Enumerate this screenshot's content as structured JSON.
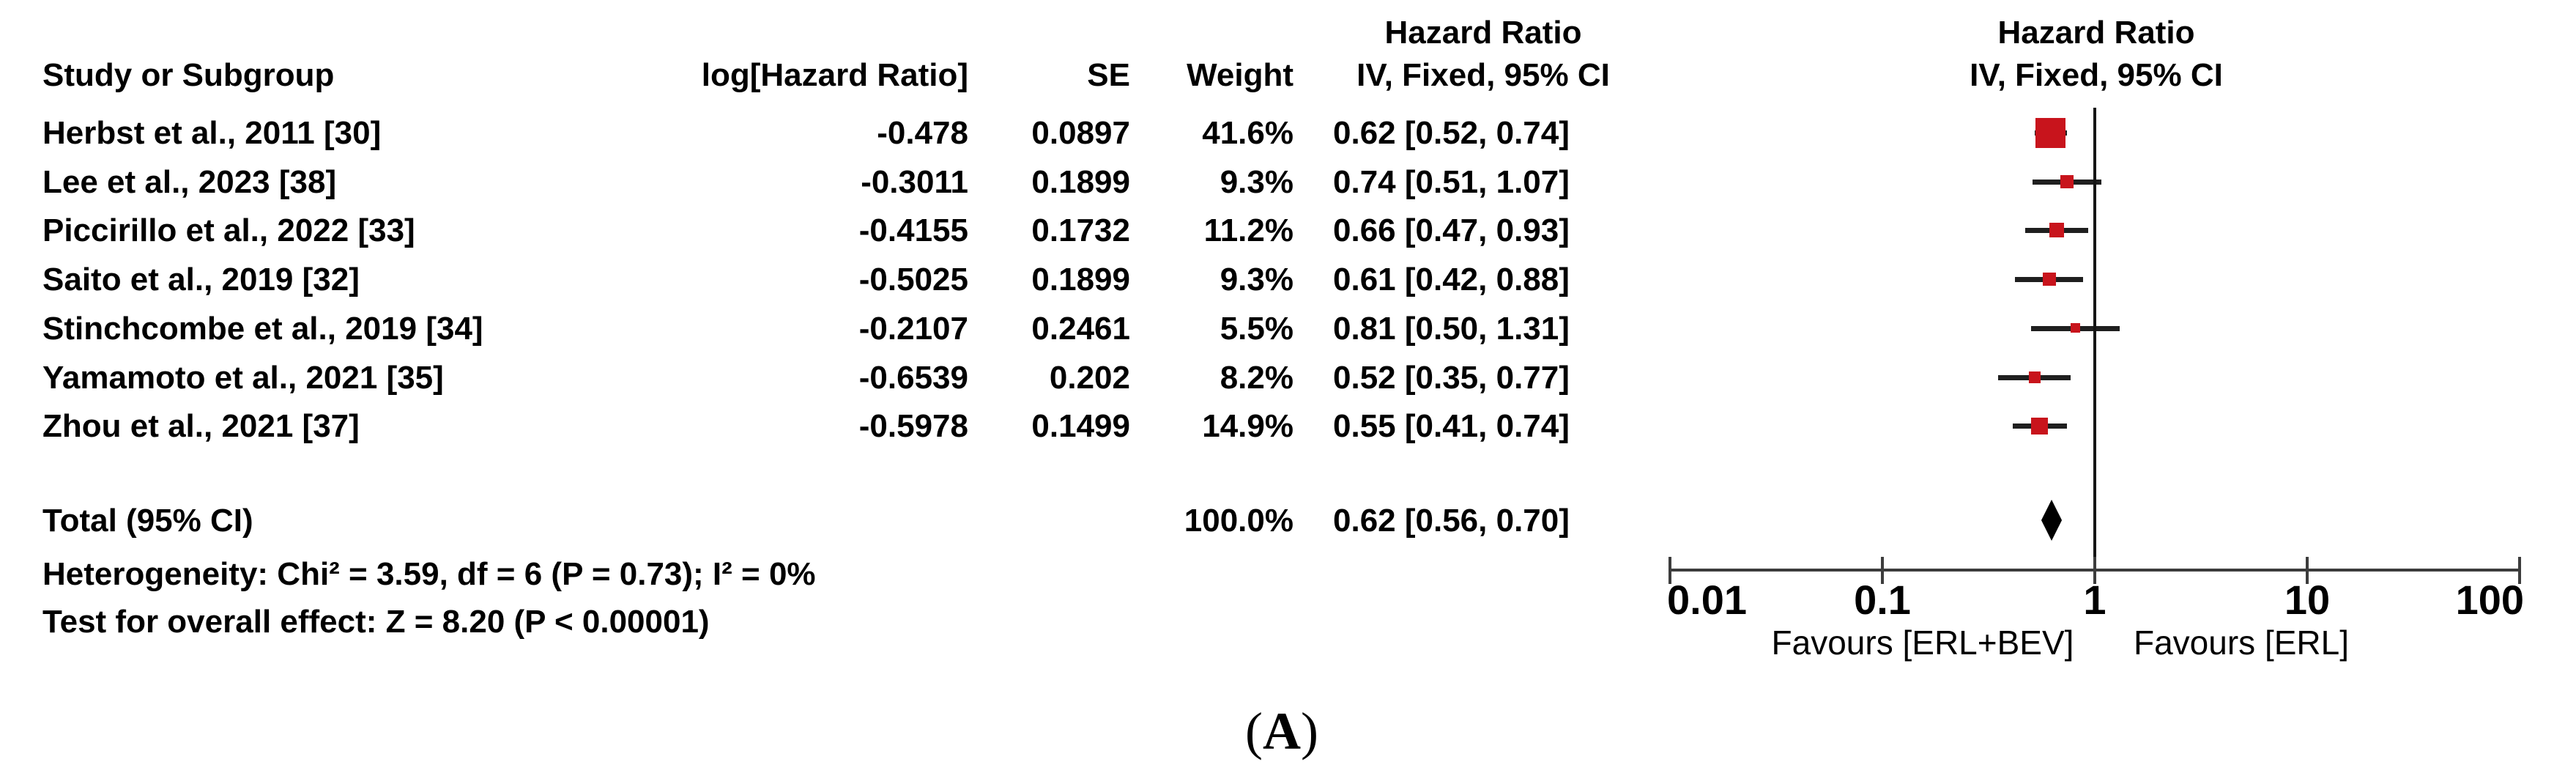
{
  "figure": {
    "caption": {
      "open": "(",
      "letter": "A",
      "close": ")"
    }
  },
  "table": {
    "headers": {
      "study": "Study or Subgroup",
      "log_hr": "log[Hazard Ratio]",
      "se": "SE",
      "weight": "Weight",
      "effect_line1": "Hazard Ratio",
      "effect_line2": "IV, Fixed, 95% CI",
      "plot_line1": "Hazard Ratio",
      "plot_line2": "IV, Fixed, 95% CI"
    },
    "total": {
      "label": "Total (95% CI)",
      "weight": "100.0%",
      "ci_text": "0.62 [0.56, 0.70]"
    },
    "heterogeneity": "Heterogeneity: Chi² = 3.59, df = 6 (P = 0.73); I² = 0%",
    "overall_effect": "Test for overall effect: Z = 8.20 (P < 0.00001)"
  },
  "chart_data": {
    "type": "forest",
    "x_scale": "log10",
    "axis_ticks": [
      0.01,
      0.1,
      1,
      10,
      100
    ],
    "axis_tick_labels": [
      "0.01",
      "0.1",
      "1",
      "10",
      "100"
    ],
    "null_line": 1,
    "favours_left": "Favours [ERL+BEV]",
    "favours_right": "Favours [ERL]",
    "model": "IV, Fixed, 95% CI",
    "studies": [
      {
        "name": "Herbst et al., 2011 [30]",
        "log_hr": "-0.478",
        "se": "0.0897",
        "weight_text": "41.6%",
        "weight": 41.6,
        "hr": 0.62,
        "ci_low": 0.52,
        "ci_high": 0.74,
        "ci_text": "0.62 [0.52, 0.74]"
      },
      {
        "name": "Lee et al., 2023 [38]",
        "log_hr": "-0.3011",
        "se": "0.1899",
        "weight_text": "9.3%",
        "weight": 9.3,
        "hr": 0.74,
        "ci_low": 0.51,
        "ci_high": 1.07,
        "ci_text": "0.74 [0.51, 1.07]"
      },
      {
        "name": "Piccirillo et al., 2022 [33]",
        "log_hr": "-0.4155",
        "se": "0.1732",
        "weight_text": "11.2%",
        "weight": 11.2,
        "hr": 0.66,
        "ci_low": 0.47,
        "ci_high": 0.93,
        "ci_text": "0.66 [0.47, 0.93]"
      },
      {
        "name": "Saito et al., 2019 [32]",
        "log_hr": "-0.5025",
        "se": "0.1899",
        "weight_text": "9.3%",
        "weight": 9.3,
        "hr": 0.61,
        "ci_low": 0.42,
        "ci_high": 0.88,
        "ci_text": "0.61 [0.42, 0.88]"
      },
      {
        "name": "Stinchcombe et al., 2019 [34]",
        "log_hr": "-0.2107",
        "se": "0.2461",
        "weight_text": "5.5%",
        "weight": 5.5,
        "hr": 0.81,
        "ci_low": 0.5,
        "ci_high": 1.31,
        "ci_text": "0.81 [0.50, 1.31]"
      },
      {
        "name": "Yamamoto et al., 2021 [35]",
        "log_hr": "-0.6539",
        "se": "0.202",
        "weight_text": "8.2%",
        "weight": 8.2,
        "hr": 0.52,
        "ci_low": 0.35,
        "ci_high": 0.77,
        "ci_text": "0.52 [0.35, 0.77]"
      },
      {
        "name": "Zhou et al., 2021 [37]",
        "log_hr": "-0.5978",
        "se": "0.1499",
        "weight_text": "14.9%",
        "weight": 14.9,
        "hr": 0.55,
        "ci_low": 0.41,
        "ci_high": 0.74,
        "ci_text": "0.55 [0.41, 0.74]"
      }
    ],
    "total": {
      "hr": 0.62,
      "ci_low": 0.56,
      "ci_high": 0.7
    }
  },
  "colors": {
    "marker_red": "#c8141c",
    "whisker": "#1f1f1f",
    "null_line": "#151515",
    "axis_line": "#3c3c3c",
    "rule_dark": "#1c1c1c",
    "rule_light": "#969696",
    "diamond": "#000000"
  }
}
